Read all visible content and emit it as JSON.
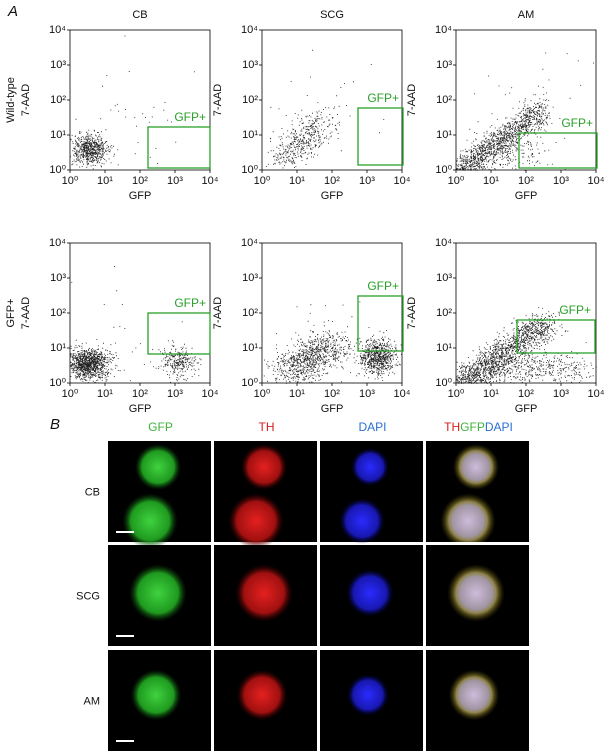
{
  "panel_a": {
    "label": "A",
    "columns": [
      "CB",
      "SCG",
      "AM"
    ],
    "rows": [
      "Wild-type",
      "GFP+"
    ],
    "x_axis_label": "GFP",
    "y_axis_label": "7-AAD",
    "ticks": [
      "10⁰",
      "10¹",
      "10²",
      "10³",
      "10⁴"
    ],
    "gate_label": "GFP+"
  },
  "panel_b": {
    "label": "B",
    "channels": [
      "GFP",
      "TH",
      "DAPI"
    ],
    "merge": [
      "TH",
      "GFP",
      "DAPI"
    ],
    "rows": [
      "CB",
      "SCG",
      "AM"
    ]
  }
}
